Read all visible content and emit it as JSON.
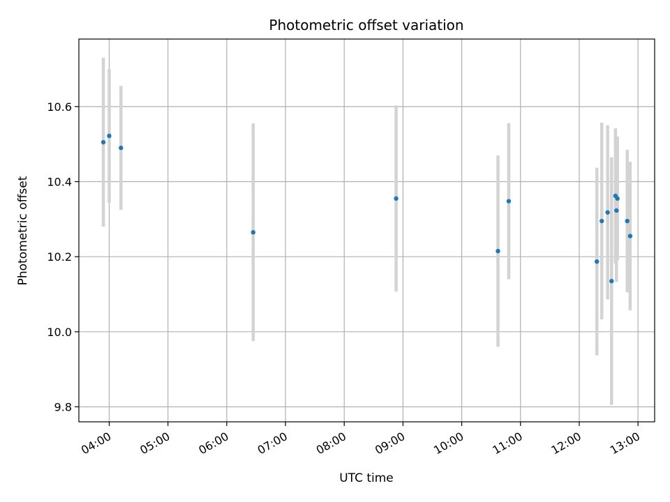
{
  "chart_data": {
    "type": "scatter",
    "title": "Photometric offset variation",
    "xlabel": "UTC time",
    "ylabel": "Photometric offset",
    "x_ticks": [
      "04:00",
      "05:00",
      "06:00",
      "07:00",
      "08:00",
      "09:00",
      "10:00",
      "11:00",
      "12:00",
      "13:00"
    ],
    "y_ticks": [
      9.8,
      10.0,
      10.2,
      10.4,
      10.6
    ],
    "xlim": [
      "03:29",
      "13:17"
    ],
    "ylim": [
      9.76,
      10.78
    ],
    "grid": true,
    "point_color": "#1f77b4",
    "errorbar_color": "#d3d3d3",
    "points": [
      {
        "x": "03:54",
        "y": 10.505,
        "yerr": 0.225
      },
      {
        "x": "04:00",
        "y": 10.522,
        "yerr": 0.178
      },
      {
        "x": "04:12",
        "y": 10.49,
        "yerr": 0.165
      },
      {
        "x": "06:27",
        "y": 10.265,
        "yerr": 0.29
      },
      {
        "x": "08:53",
        "y": 10.355,
        "yerr": 0.248
      },
      {
        "x": "10:37",
        "y": 10.215,
        "yerr": 0.255
      },
      {
        "x": "10:48",
        "y": 10.348,
        "yerr": 0.208
      },
      {
        "x": "12:18",
        "y": 10.187,
        "yerr": 0.25
      },
      {
        "x": "12:23",
        "y": 10.295,
        "yerr": 0.262
      },
      {
        "x": "12:29",
        "y": 10.318,
        "yerr": 0.232
      },
      {
        "x": "12:33",
        "y": 10.135,
        "yerr": 0.33
      },
      {
        "x": "12:37",
        "y": 10.362,
        "yerr": 0.18
      },
      {
        "x": "12:38",
        "y": 10.323,
        "yerr": 0.19
      },
      {
        "x": "12:39",
        "y": 10.355,
        "yerr": 0.165
      },
      {
        "x": "12:49",
        "y": 10.295,
        "yerr": 0.19
      },
      {
        "x": "12:52",
        "y": 10.255,
        "yerr": 0.198
      }
    ]
  }
}
